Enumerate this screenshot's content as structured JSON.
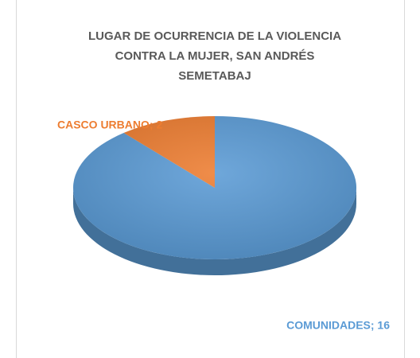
{
  "chart_data": {
    "type": "pie",
    "title": "LUGAR DE OCURRENCIA DE LA VIOLENCIA CONTRA LA MUJER, SAN ANDRÉS SEMETABAJ",
    "values": [
      16,
      2
    ],
    "value_labels": [
      "COMUNIDADES; 16",
      "CASCO URBANO; 2"
    ],
    "colors": [
      "#5b9bd5",
      "#ed7d31"
    ]
  }
}
